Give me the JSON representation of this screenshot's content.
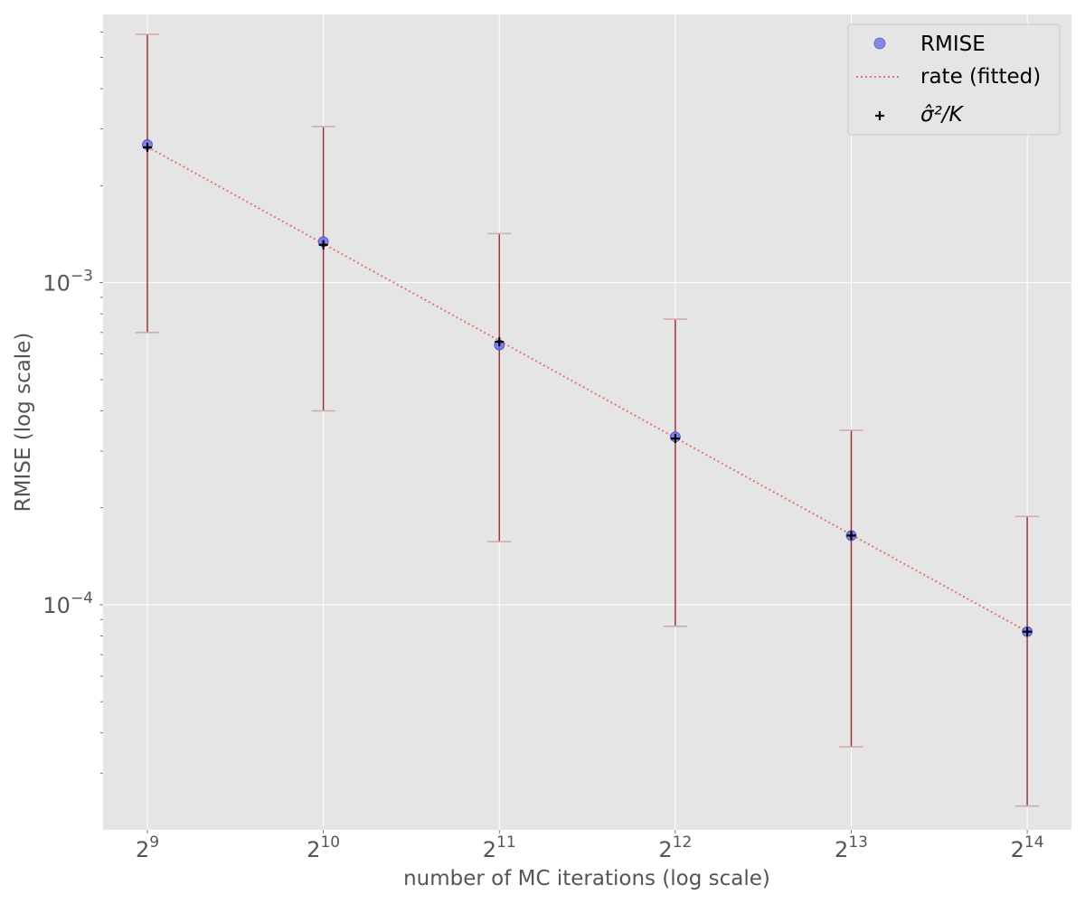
{
  "chart_data": {
    "type": "scatter",
    "xscale": "log2",
    "yscale": "log10",
    "x_ticks": [
      {
        "value": 512,
        "base": "2",
        "exp": "9"
      },
      {
        "value": 1024,
        "base": "2",
        "exp": "10"
      },
      {
        "value": 2048,
        "base": "2",
        "exp": "11"
      },
      {
        "value": 4096,
        "base": "2",
        "exp": "12"
      },
      {
        "value": 8192,
        "base": "2",
        "exp": "13"
      },
      {
        "value": 16384,
        "base": "2",
        "exp": "14"
      }
    ],
    "y_ticks": [
      {
        "value": 0.001,
        "base": "10",
        "exp": "−3"
      },
      {
        "value": 0.0001,
        "base": "10",
        "exp": "−4"
      }
    ],
    "xlabel": "number of MC iterations (log scale)",
    "ylabel": "RMISE (log scale)",
    "xlim": [
      430,
      19500
    ],
    "ylim": [
      2e-05,
      0.0068
    ],
    "grid": true,
    "legend_position": "top-right",
    "legend": {
      "rmise": "RMISE",
      "rate": "rate (fitted)",
      "sigma": "σ̂²/K"
    },
    "x": [
      512,
      1024,
      2048,
      4096,
      8192,
      16384
    ],
    "series": [
      {
        "name": "RMISE",
        "kind": "marker",
        "values": [
          0.00268,
          0.00134,
          0.00064,
          0.000332,
          0.000164,
          8.25e-05
        ],
        "err_low": [
          0.0007,
          0.0004,
          0.000157,
          8.57e-05,
          3.62e-05,
          2.37e-05
        ],
        "err_high": [
          0.0059,
          0.00305,
          0.00142,
          0.00077,
          0.000348,
          0.000188
        ]
      },
      {
        "name": "rate (fitted)",
        "kind": "line",
        "values": [
          0.00264,
          0.00132,
          0.00066,
          0.00033,
          0.000165,
          8.25e-05
        ]
      },
      {
        "name": "σ̂²/K",
        "kind": "plus",
        "values": [
          0.00263,
          0.00131,
          0.000655,
          0.000328,
          0.000164,
          8.25e-05
        ]
      }
    ],
    "colors": {
      "background": "#e5e5e5",
      "grid": "#ffffff",
      "rmise": "#6f6fe8",
      "rate": "#e8746e",
      "errorbar": "#9b2a2a",
      "errorcap": "#d4aaaa",
      "plus": "#000000"
    }
  }
}
